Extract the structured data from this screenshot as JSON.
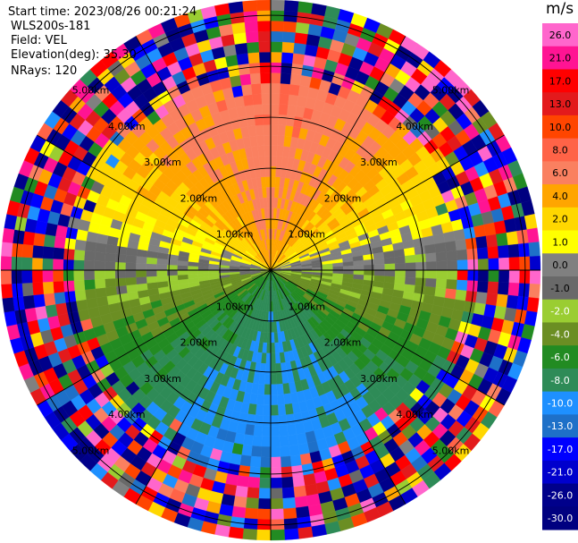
{
  "header": {
    "start_time": "Start time: 2023/08/26 00:21:24",
    "instrument": "WLS200s-181",
    "field": "Field: VEL",
    "elevation": "Elevation(deg): 35.30",
    "nrays": "NRays: 120"
  },
  "chart_data": {
    "type": "heatmap",
    "projection": "polar-ppi",
    "n_rays": 120,
    "range_ring_labels": [
      "1.00km",
      "2.00km",
      "3.00km",
      "4.00km",
      "5.00km"
    ],
    "range_rings_km": [
      1,
      2,
      3,
      4,
      5
    ],
    "max_range_km": 5.3,
    "colorbar": {
      "unit": "m/s",
      "tick_labels": [
        "26.0",
        "21.0",
        "17.0",
        "13.0",
        "10.0",
        "8.0",
        "6.0",
        "4.0",
        "2.0",
        "1.0",
        "0.0",
        "-1.0",
        "-2.0",
        "-4.0",
        "-6.0",
        "-8.0",
        "-10.0",
        "-13.0",
        "-17.0",
        "-21.0",
        "-26.0",
        "-30.0"
      ],
      "bins": [
        {
          "min": 26,
          "max": 30,
          "color": "#ff66cc"
        },
        {
          "min": 21,
          "max": 26,
          "color": "#ff1493"
        },
        {
          "min": 17,
          "max": 21,
          "color": "#ff0000"
        },
        {
          "min": 13,
          "max": 17,
          "color": "#e31a1c"
        },
        {
          "min": 10,
          "max": 13,
          "color": "#ff4500"
        },
        {
          "min": 8,
          "max": 10,
          "color": "#ff6347"
        },
        {
          "min": 6,
          "max": 8,
          "color": "#fa8060"
        },
        {
          "min": 4,
          "max": 6,
          "color": "#ffa500"
        },
        {
          "min": 2,
          "max": 4,
          "color": "#ffd700"
        },
        {
          "min": 1,
          "max": 2,
          "color": "#ffff00"
        },
        {
          "min": 0,
          "max": 1,
          "color": "#808080"
        },
        {
          "min": -1,
          "max": 0,
          "color": "#696969"
        },
        {
          "min": -2,
          "max": -1,
          "color": "#9acd32"
        },
        {
          "min": -4,
          "max": -2,
          "color": "#6b8e23"
        },
        {
          "min": -6,
          "max": -4,
          "color": "#228b22"
        },
        {
          "min": -8,
          "max": -6,
          "color": "#2e8b57"
        },
        {
          "min": -10,
          "max": -8,
          "color": "#1e90ff"
        },
        {
          "min": -13,
          "max": -10,
          "color": "#1e70c8"
        },
        {
          "min": -17,
          "max": -13,
          "color": "#0000ff"
        },
        {
          "min": -21,
          "max": -17,
          "color": "#0000cd"
        },
        {
          "min": -26,
          "max": -21,
          "color": "#00008b"
        },
        {
          "min": -30,
          "max": -26,
          "color": "#000080"
        }
      ]
    },
    "pattern": {
      "north_mean_velocity": 6,
      "south_mean_velocity": -7.5,
      "noise_beyond_km": 3.5
    }
  }
}
